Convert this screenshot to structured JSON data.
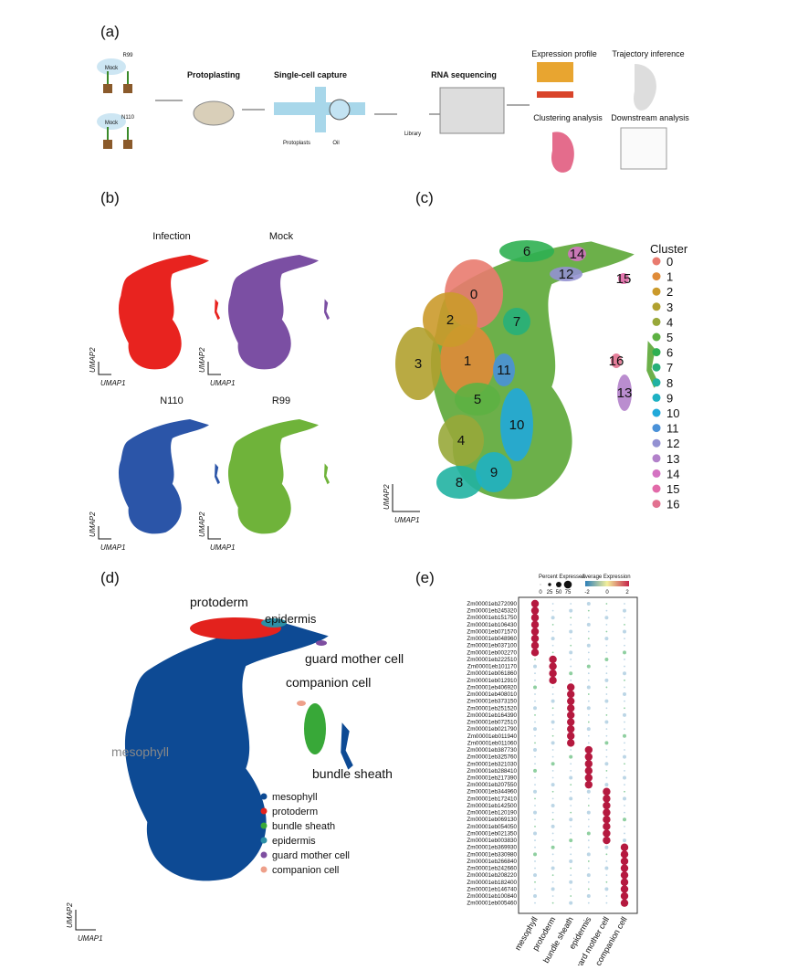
{
  "panel_a": {
    "label": "(a)",
    "texts": [
      "R99",
      "Mock",
      "Mock",
      "N110",
      "Protoplasting",
      "Single-cell capture",
      "RNA sequencing",
      "Expression profile",
      "Trajectory inference",
      "Clustering analysis",
      "Downstream analysis",
      "Library",
      "Oil",
      "Protoplasts"
    ]
  },
  "panel_b": {
    "label": "(b)",
    "samples": [
      {
        "name": "Infection",
        "color": "#e8231f"
      },
      {
        "name": "Mock",
        "color": "#7b4fa3"
      },
      {
        "name": "N110",
        "color": "#2b55a8"
      },
      {
        "name": "R99",
        "color": "#6fb33a"
      }
    ],
    "xlabel": "UMAP1",
    "ylabel": "UMAP2"
  },
  "panel_c": {
    "label": "(c)",
    "legend_title": "Cluster",
    "xlabel": "UMAP1",
    "ylabel": "UMAP2",
    "clusters": [
      {
        "name": "0",
        "color": "#e97b6f"
      },
      {
        "name": "1",
        "color": "#e08b38"
      },
      {
        "name": "2",
        "color": "#cb9a2b"
      },
      {
        "name": "3",
        "color": "#b1a12f"
      },
      {
        "name": "4",
        "color": "#98a83a"
      },
      {
        "name": "5",
        "color": "#5db142"
      },
      {
        "name": "6",
        "color": "#2fb052"
      },
      {
        "name": "7",
        "color": "#27b07a"
      },
      {
        "name": "8",
        "color": "#21b2a2"
      },
      {
        "name": "9",
        "color": "#1fb1c3"
      },
      {
        "name": "10",
        "color": "#21a9da"
      },
      {
        "name": "11",
        "color": "#4a91d8"
      },
      {
        "name": "12",
        "color": "#9391d2"
      },
      {
        "name": "13",
        "color": "#b281ca"
      },
      {
        "name": "14",
        "color": "#d472c2"
      },
      {
        "name": "15",
        "color": "#e26aa9"
      },
      {
        "name": "16",
        "color": "#e27190"
      }
    ]
  },
  "panel_d": {
    "label": "(d)",
    "xlabel": "UMAP1",
    "ylabel": "UMAP2",
    "cell_types": [
      {
        "name": "mesophyll",
        "color": "#0d4a94"
      },
      {
        "name": "protoderm",
        "color": "#e3221d"
      },
      {
        "name": "bundle sheath",
        "color": "#38a838"
      },
      {
        "name": "epidermis",
        "color": "#2c8fa6"
      },
      {
        "name": "guard mother cell",
        "color": "#7e4ea0"
      },
      {
        "name": "companion cell",
        "color": "#eea08a"
      }
    ]
  },
  "panel_e": {
    "label": "(e)",
    "size_title": "Percent Expressed",
    "size_ticks": [
      0,
      25,
      50,
      75
    ],
    "color_title": "Average Expression",
    "color_ticks": [
      -2,
      0,
      2
    ],
    "cell_types": [
      "mesophyll",
      "protoderm",
      "bundle sheath",
      "epidermis",
      "guard mother cell",
      "companion cell"
    ],
    "genes": [
      "Zm00001eb272090",
      "Zm00001eb245320",
      "Zm00001eb151750",
      "Zm00001eb106430",
      "Zm00001eb071570",
      "Zm00001eb048960",
      "Zm00001eb037100",
      "Zm00001eb002270",
      "Zm00001eb222510",
      "Zm00001eb101170",
      "Zm00001eb061860",
      "Zm00001eb012910",
      "Zm00001eb406920",
      "Zm00001eb408010",
      "Zm00001eb373150",
      "Zm00001eb251520",
      "Zm00001eb164390",
      "Zm00001eb072510",
      "Zm00001eb021790",
      "Zm00001eb011940",
      "Zm00001eb011060",
      "Zm00001eb387730",
      "Zm00001eb325760",
      "Zm00001eb321030",
      "Zm00001eb288410",
      "Zm00001eb217390",
      "Zm00001eb207550",
      "Zm00001eb344960",
      "Zm00001eb172410",
      "Zm00001eb142500",
      "Zm00001eb120190",
      "Zm00001eb069130",
      "Zm00001eb054050",
      "Zm00001eb021350",
      "Zm00001eb003830",
      "Zm00001eb369930",
      "Zm00001eb330980",
      "Zm00001eb266840",
      "Zm00001eb242660",
      "Zm00001eb208220",
      "Zm00001eb182400",
      "Zm00001eb146740",
      "Zm00001eb100840",
      "Zm00001eb005460"
    ],
    "marker_cell_type": [
      0,
      0,
      0,
      0,
      0,
      0,
      0,
      0,
      1,
      1,
      1,
      1,
      2,
      2,
      2,
      2,
      2,
      2,
      2,
      2,
      2,
      3,
      3,
      3,
      3,
      3,
      3,
      4,
      4,
      4,
      4,
      4,
      4,
      4,
      4,
      5,
      5,
      5,
      5,
      5,
      5,
      5,
      5,
      5
    ]
  }
}
